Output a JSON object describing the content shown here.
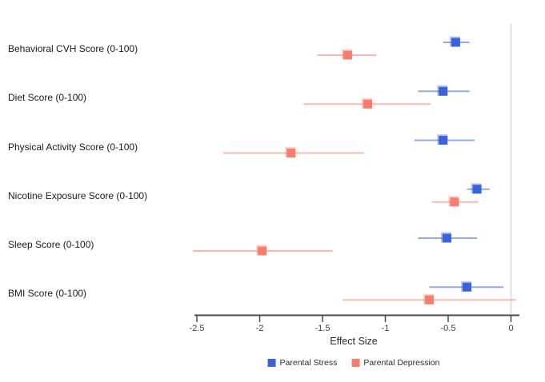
{
  "chart_data": {
    "type": "scatter",
    "subtype": "forest-plot",
    "title": "",
    "xlabel": "Effect Size",
    "ylabel": "",
    "xlim": [
      -2.62,
      0.27
    ],
    "x_ticks": [
      -2.5,
      -2,
      -1.5,
      -1,
      -0.5,
      0
    ],
    "x_tick_labels": [
      "-2.5",
      "-2",
      "-1.5",
      "-1",
      "-0.5",
      "0"
    ],
    "reference_line_x": 0,
    "grid": false,
    "legend_position": "bottom",
    "categories": [
      "Behavioral CVH Score (0-100)",
      "Diet Score (0-100)",
      "Physical Activity Score (0-100)",
      "Nicotine Exposure Score (0-100)",
      "Sleep Score (0-100)",
      "BMI Score (0-100)"
    ],
    "series": [
      {
        "name": "Parental Stress",
        "color": "#3A62D9",
        "estimates": [
          -0.44,
          -0.54,
          -0.54,
          -0.27,
          -0.51,
          -0.35
        ],
        "ci_low": [
          -0.54,
          -0.74,
          -0.77,
          -0.35,
          -0.74,
          -0.65
        ],
        "ci_high": [
          -0.33,
          -0.33,
          -0.29,
          -0.17,
          -0.27,
          -0.06
        ]
      },
      {
        "name": "Parental Depression",
        "color": "#F97D6F",
        "estimates": [
          -1.3,
          -1.14,
          -1.75,
          -0.45,
          -1.98,
          -0.65
        ],
        "ci_low": [
          -1.54,
          -1.65,
          -2.29,
          -0.63,
          -2.53,
          -1.34
        ],
        "ci_high": [
          -1.07,
          -0.64,
          -1.17,
          -0.26,
          -1.42,
          0.04
        ]
      }
    ],
    "colors": {
      "axis": "#4a4a4a",
      "tick_text": "#3d3d3d",
      "reference_line": "#e6e6e6"
    }
  }
}
